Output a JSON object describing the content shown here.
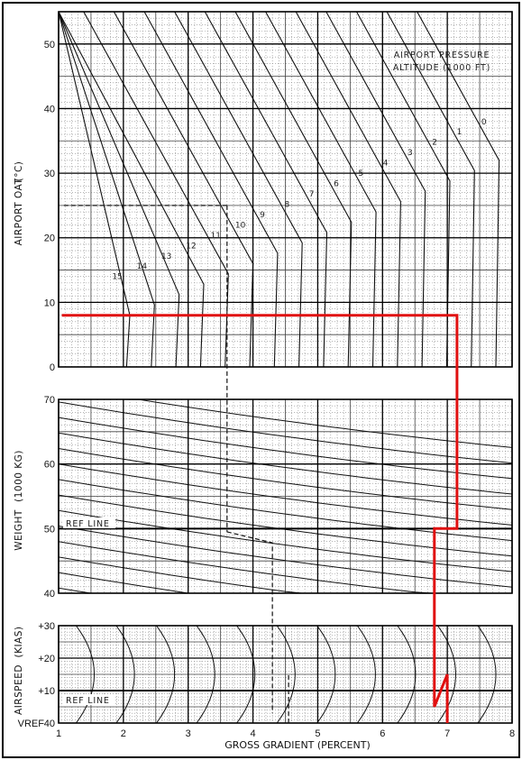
{
  "chart_data": {
    "type": "line",
    "title": "",
    "xlabel": "GROSS GRADIENT (PERCENT)",
    "x_ticks": [
      "1",
      "2",
      "3",
      "4",
      "5",
      "6",
      "7",
      "8"
    ],
    "xlim": [
      1,
      8
    ],
    "colors": {
      "grid": "#888888",
      "curve": "#111111",
      "example": "#e01010",
      "frame": "#000000"
    },
    "panels": [
      {
        "name": "oat",
        "ylabel": "AIRPORT OAT",
        "yunit": "(°C)",
        "ylim": [
          0,
          55
        ],
        "y_ticks": [
          "0",
          "10",
          "20",
          "30",
          "40",
          "50"
        ],
        "note_lines": [
          "AIRPORT PRESSURE",
          "ALTITUDE  (1000 FT)"
        ],
        "altitude_labels": [
          "0",
          "1",
          "2",
          "3",
          "4",
          "5",
          "6",
          "7",
          "8",
          "9",
          "10",
          "11",
          "12",
          "13",
          "14",
          "15"
        ]
      },
      {
        "name": "weight",
        "ylabel": "WEIGHT",
        "yunit": "(1000 KG)",
        "ylim": [
          40,
          70
        ],
        "y_ticks": [
          "40",
          "50",
          "60",
          "70"
        ],
        "ref_line_label": "REF LINE"
      },
      {
        "name": "airspeed",
        "ylabel": "AIRSPEED",
        "yunit": "(KIAS)",
        "ylim": [
          0,
          30
        ],
        "y_ticks": [
          "VREF",
          "+10",
          "+20",
          "+30"
        ],
        "y_ticks_suffix": "40",
        "ref_line_label": "REF LINE"
      }
    ],
    "example": {
      "oat_c": 8,
      "gradient_at_oat": 7.0,
      "gradient_at_weight": 6.8,
      "weight_t": 50,
      "final_gradient": 7.0
    }
  }
}
